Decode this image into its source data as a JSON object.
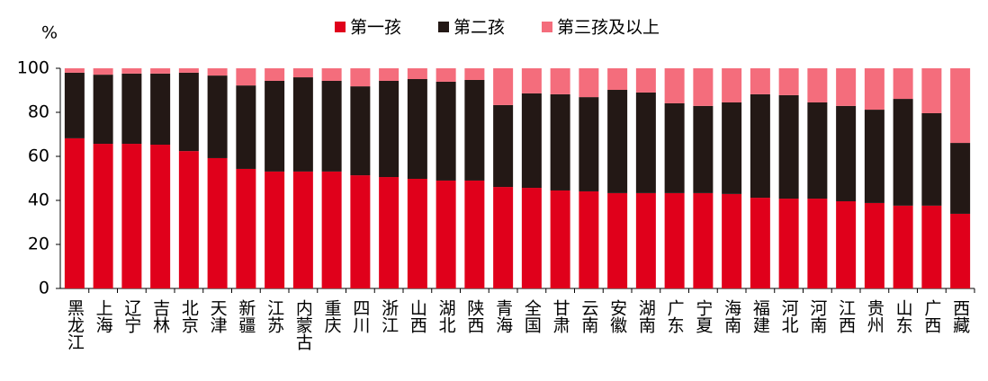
{
  "chart_data": {
    "type": "stacked_bar",
    "y_label": "%",
    "categories": [
      "黑龙江",
      "上海",
      "辽宁",
      "吉林",
      "北京",
      "天津",
      "新疆",
      "江苏",
      "内蒙古",
      "重庆",
      "四川",
      "浙江",
      "山西",
      "湖北",
      "陕西",
      "青海",
      "全国",
      "甘肃",
      "云南",
      "安徽",
      "湖南",
      "广东",
      "宁夏",
      "海南",
      "福建",
      "河北",
      "河南",
      "江西",
      "贵州",
      "山东",
      "广西",
      "西藏"
    ],
    "series": [
      {
        "name": "第一孩",
        "color": "#e0001b",
        "values": [
          68.2,
          65.7,
          65.7,
          65.3,
          62.4,
          59.2,
          54.3,
          53.1,
          53.1,
          53.1,
          51.4,
          50.6,
          49.8,
          49.0,
          49.0,
          46.1,
          45.7,
          44.5,
          44.1,
          43.3,
          43.3,
          43.3,
          43.3,
          42.9,
          41.2,
          40.8,
          40.8,
          39.6,
          38.8,
          37.6,
          37.6,
          33.9
        ]
      },
      {
        "name": "第二孩",
        "color": "#231815",
        "values": [
          29.8,
          31.4,
          31.9,
          32.3,
          35.6,
          37.5,
          37.9,
          41.2,
          42.8,
          41.2,
          40.4,
          43.7,
          45.3,
          44.9,
          45.7,
          37.2,
          42.9,
          43.7,
          42.8,
          46.9,
          45.7,
          40.8,
          39.6,
          41.6,
          47.0,
          47.0,
          43.7,
          43.3,
          42.4,
          48.5,
          42.0,
          32.2
        ]
      },
      {
        "name": "第三孩及以上",
        "color": "#f46d7c",
        "values": [
          2.0,
          2.9,
          2.4,
          2.4,
          2.0,
          3.3,
          7.8,
          5.7,
          4.1,
          5.7,
          8.2,
          5.7,
          4.9,
          6.1,
          5.3,
          16.7,
          11.4,
          11.8,
          13.1,
          9.8,
          11.0,
          15.9,
          17.1,
          15.5,
          11.8,
          12.2,
          15.5,
          17.1,
          18.8,
          13.9,
          20.4,
          33.9
        ]
      }
    ],
    "ylim": [
      0,
      100
    ],
    "yticks": [
      0,
      20,
      40,
      60,
      80,
      100
    ]
  }
}
